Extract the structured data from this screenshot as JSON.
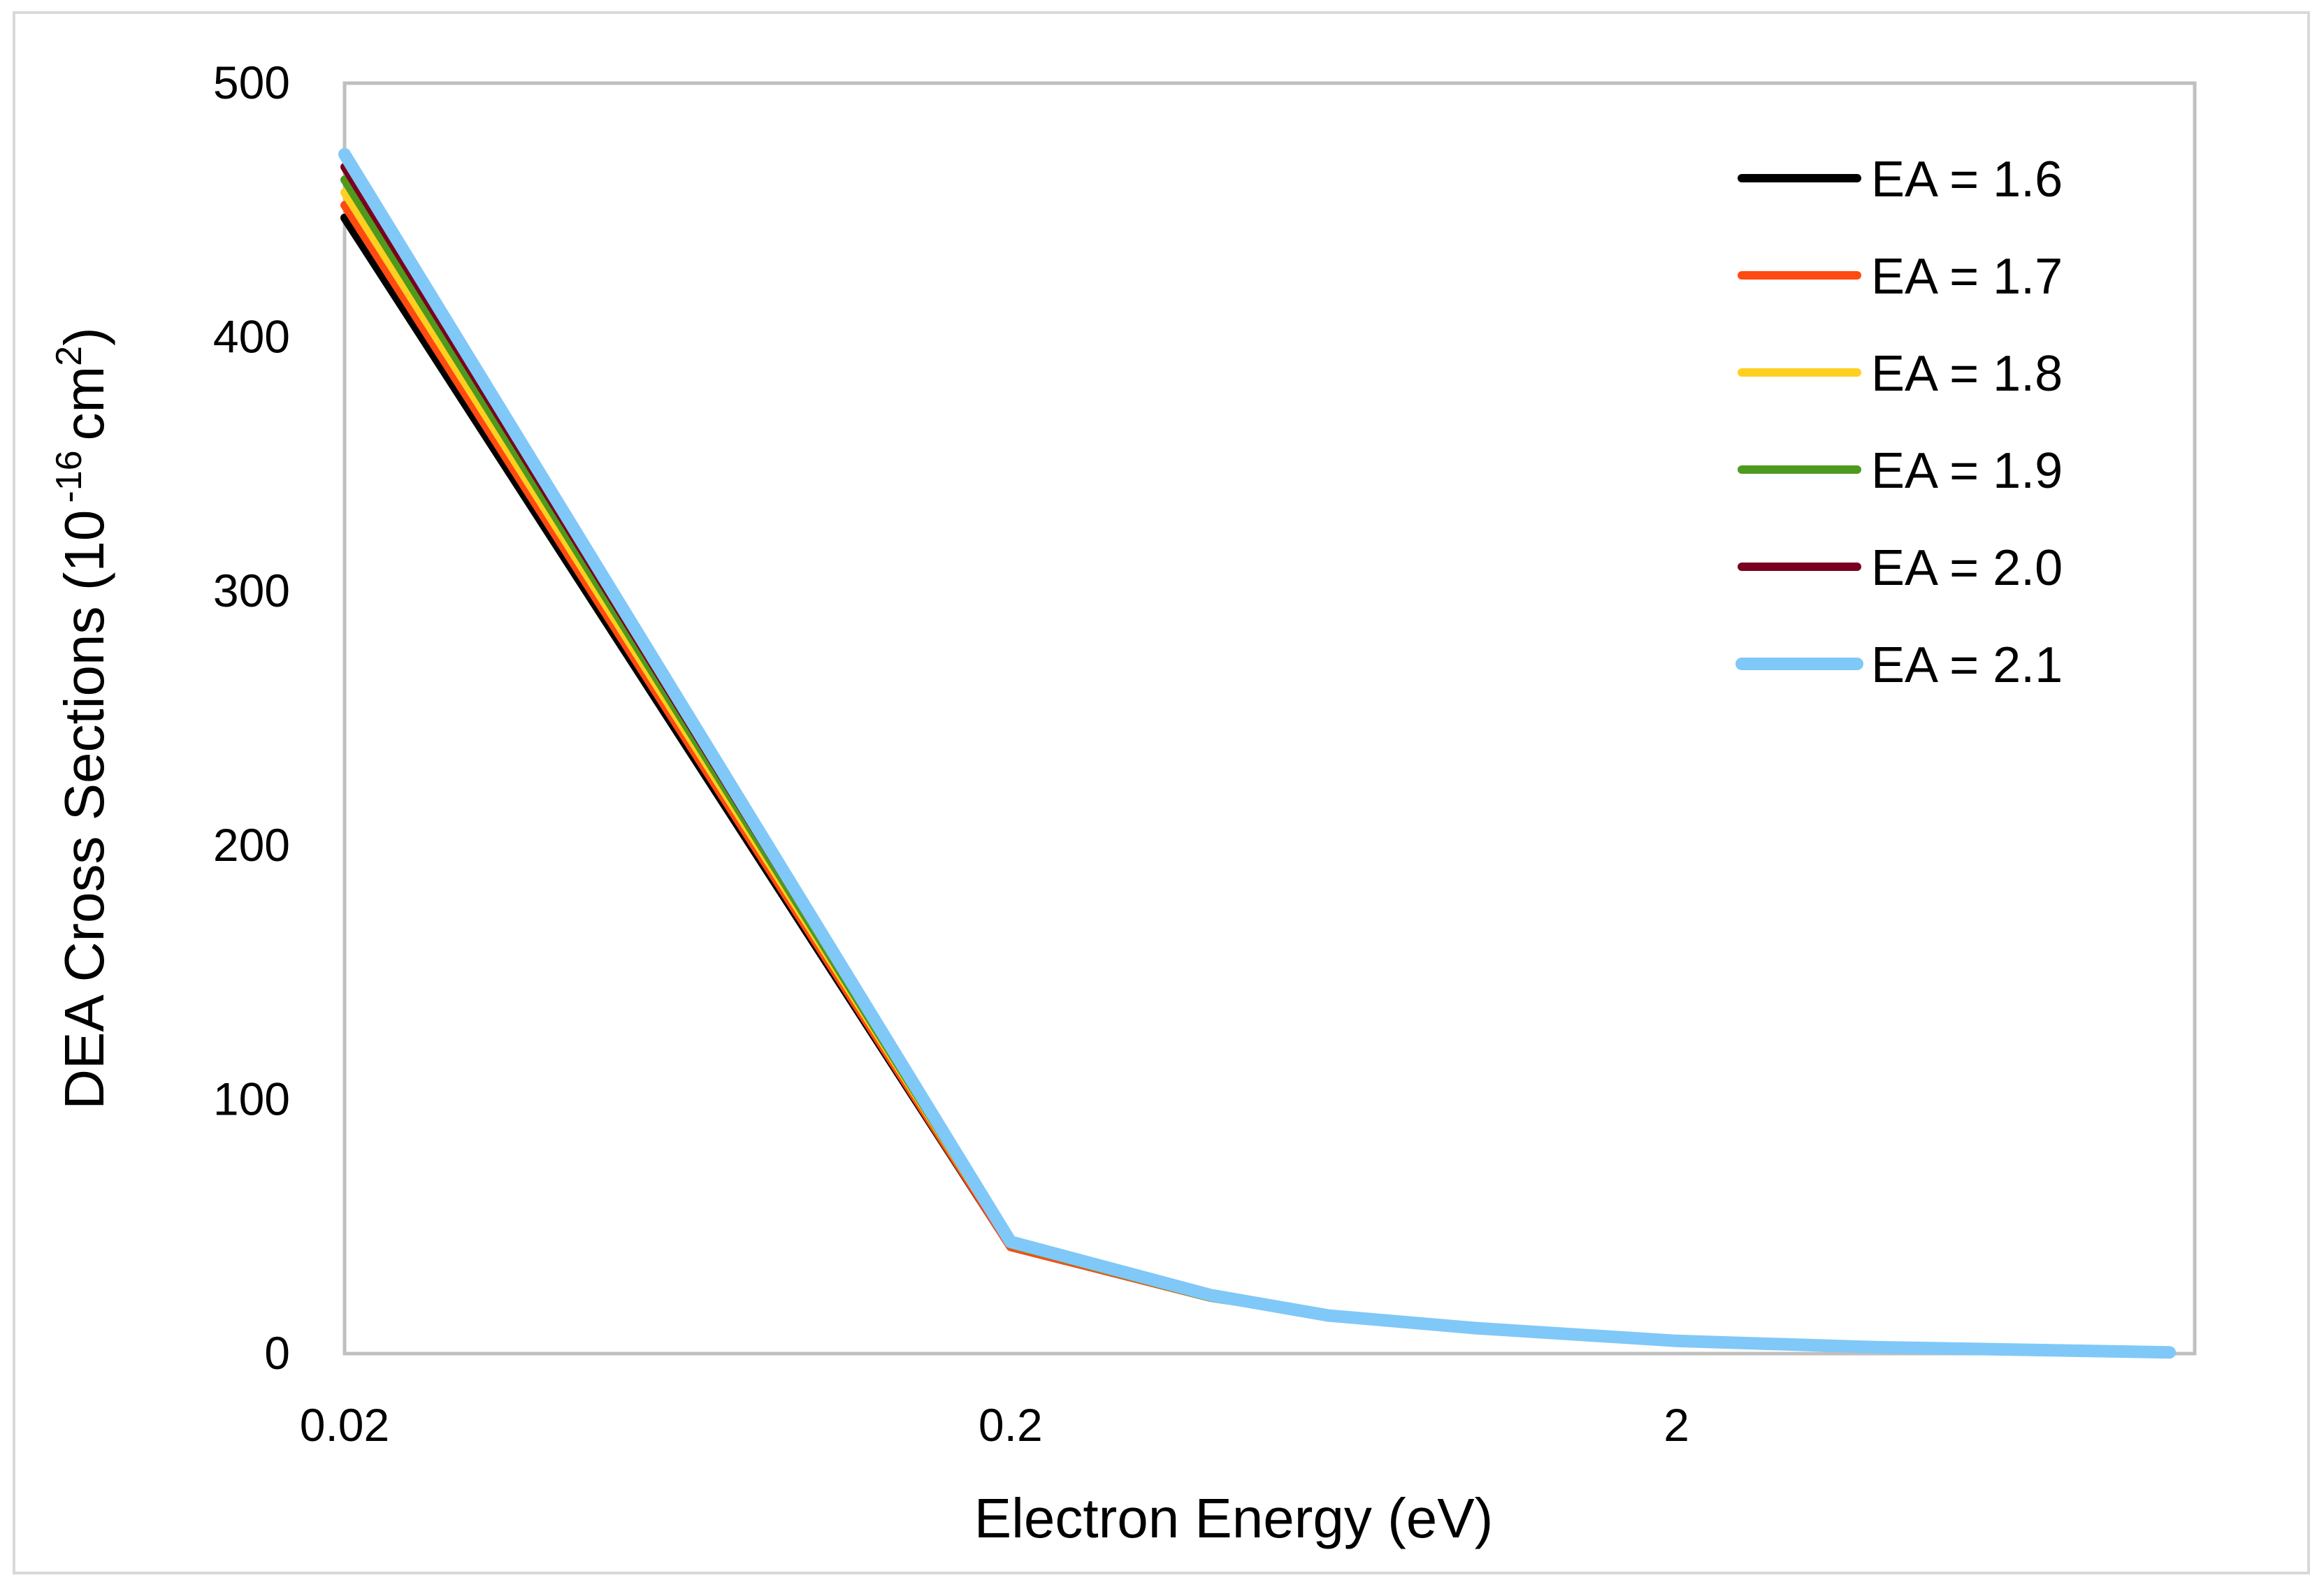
{
  "chart_data": {
    "type": "line",
    "title": "",
    "xlabel": "Electron Energy (eV)",
    "ylabel": {
      "main": "DEA Cross Sections (10",
      "exponent": "-16",
      "unit": "cm",
      "unit_exponent": "2",
      "close": ")"
    },
    "x_scale": "log",
    "xlim": [
      0.02,
      12
    ],
    "ylim": [
      0,
      500
    ],
    "x_ticks": [
      {
        "value": 0.02,
        "label": "0.02"
      },
      {
        "value": 0.2,
        "label": "0.2"
      },
      {
        "value": 2,
        "label": "2"
      }
    ],
    "y_ticks": [
      {
        "value": 0,
        "label": "0"
      },
      {
        "value": 100,
        "label": "100"
      },
      {
        "value": 200,
        "label": "200"
      },
      {
        "value": 300,
        "label": "300"
      },
      {
        "value": 400,
        "label": "400"
      },
      {
        "value": 500,
        "label": "500"
      }
    ],
    "grid": false,
    "legend_position": "top-right",
    "x": [
      0.02,
      0.2,
      0.4,
      0.6,
      1,
      2,
      4,
      11
    ],
    "series": [
      {
        "name": "EA = 1.6",
        "color": "#000000",
        "values": [
          447,
          42,
          22,
          15,
          10,
          5,
          2.5,
          0.5
        ]
      },
      {
        "name": "EA = 1.7",
        "color": "#ff4a12",
        "values": [
          452,
          42,
          22,
          15,
          10,
          5,
          2.5,
          0.5
        ]
      },
      {
        "name": "EA = 1.8",
        "color": "#ffd020",
        "values": [
          457,
          43,
          22,
          15,
          10,
          5,
          2.5,
          0.5
        ]
      },
      {
        "name": "EA = 1.9",
        "color": "#4e9a1e",
        "values": [
          462,
          43,
          22,
          15,
          10,
          5,
          2.5,
          0.5
        ]
      },
      {
        "name": "EA = 2.0",
        "color": "#7a0020",
        "values": [
          467,
          44,
          23,
          15,
          10,
          5,
          2.5,
          0.5
        ]
      },
      {
        "name": "EA = 2.1",
        "color": "#80c8f8",
        "values": [
          472,
          44,
          23,
          15,
          10,
          5,
          2.5,
          0.5
        ]
      }
    ]
  }
}
